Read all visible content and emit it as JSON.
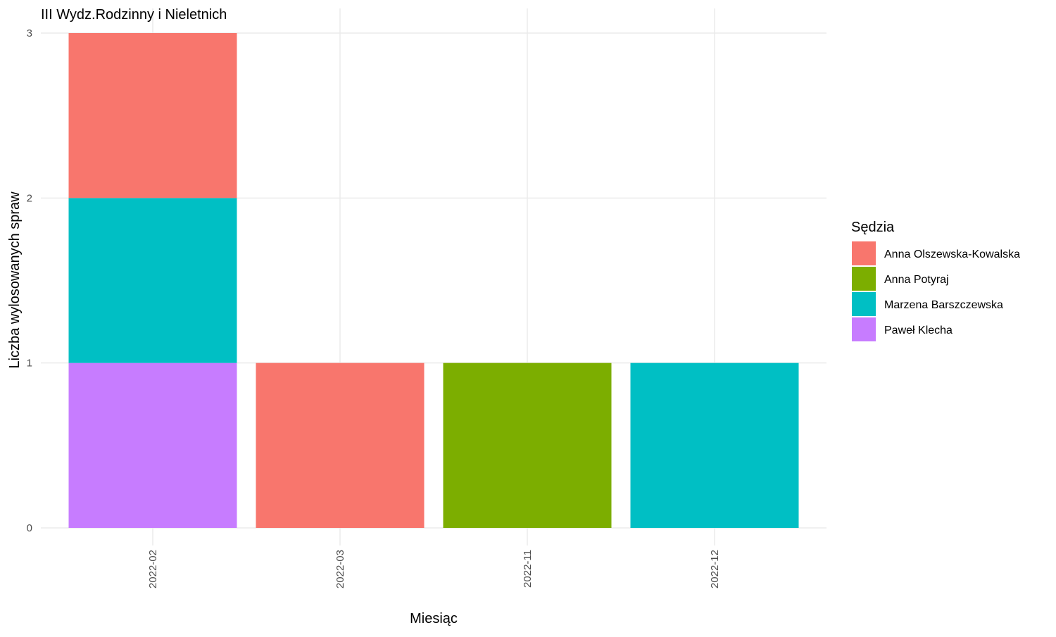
{
  "chart_data": {
    "type": "bar",
    "stacked": true,
    "title": "III Wydz.Rodzinny i Nieletnich",
    "xlabel": "Miesiąc",
    "ylabel": "Liczba wylosowanych spraw",
    "ylim": [
      0,
      3
    ],
    "yticks": [
      "0",
      "1",
      "2",
      "3"
    ],
    "categories": [
      "2022-02",
      "2022-03",
      "2022-11",
      "2022-12"
    ],
    "grid": true,
    "legend_position": "right",
    "legend_title": "Sędzia",
    "series": [
      {
        "name": "Anna Olszewska-Kowalska",
        "color": "#F8766D",
        "values": [
          1,
          1,
          0,
          0
        ]
      },
      {
        "name": "Anna Potyraj",
        "color": "#7CAE00",
        "values": [
          0,
          0,
          1,
          0
        ]
      },
      {
        "name": "Marzena Barszczewska",
        "color": "#00BFC4",
        "values": [
          1,
          0,
          0,
          1
        ]
      },
      {
        "name": "Paweł Klecha",
        "color": "#C77CFF",
        "values": [
          1,
          0,
          0,
          0
        ]
      }
    ]
  }
}
